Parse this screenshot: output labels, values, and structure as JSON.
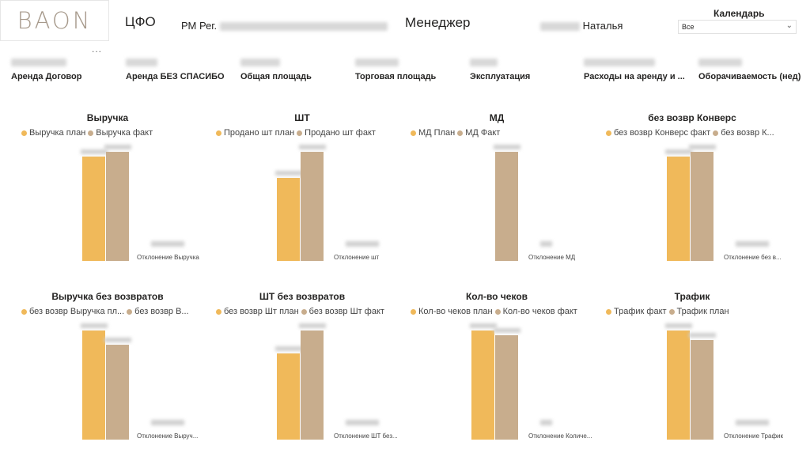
{
  "header": {
    "logo": "BAON",
    "cfo": "ЦФО",
    "rm_prefix": "РМ Рег.",
    "manager": "Менеджер",
    "user_name": "Наталья",
    "calendar_label": "Календарь",
    "calendar_value": "Все",
    "more": "..."
  },
  "cards": [
    {
      "label": "Аренда Договор"
    },
    {
      "label": "Аренда БЕЗ СПАСИБО"
    },
    {
      "label": "Общая площадь"
    },
    {
      "label": "Торговая площадь"
    },
    {
      "label": "Эксплуатация"
    },
    {
      "label": "Расходы на аренду и ..."
    },
    {
      "label": "Оборачиваемость (нед)"
    }
  ],
  "colors": {
    "plan": "#f0b95a",
    "fact": "#c8ad8d"
  },
  "chart_data": [
    {
      "type": "bar",
      "title": "Выручка",
      "series": [
        {
          "name": "Выручка план",
          "values": [
            88
          ],
          "color": "#f0b95a"
        },
        {
          "name": "Выручка факт",
          "values": [
            92
          ],
          "color": "#c8ad8d"
        }
      ],
      "deviation_label": "Отклонение Выручка"
    },
    {
      "type": "bar",
      "title": "ШТ",
      "series": [
        {
          "name": "Продано шт план",
          "values": [
            70
          ],
          "color": "#f0b95a"
        },
        {
          "name": "Продано шт факт",
          "values": [
            92
          ],
          "color": "#c8ad8d"
        }
      ],
      "deviation_label": "Отклонение шт"
    },
    {
      "type": "bar",
      "title": "МД",
      "series": [
        {
          "name": "МД План",
          "values": [
            0
          ],
          "color": "#f0b95a"
        },
        {
          "name": "МД Факт",
          "values": [
            92
          ],
          "color": "#c8ad8d"
        }
      ],
      "deviation_label": "Отклонение МД"
    },
    {
      "type": "bar",
      "title": "без возвр Конверс",
      "series": [
        {
          "name": "без возвр Конверс факт",
          "values": [
            88
          ],
          "color": "#f0b95a"
        },
        {
          "name": "без возвр Конверс план",
          "values": [
            92
          ],
          "color": "#c8ad8d"
        }
      ],
      "legend_texts": [
        "без возвр Конверс факт",
        "без возвр К..."
      ],
      "deviation_label": "Отклонение без в..."
    },
    {
      "type": "bar",
      "title": "Выручка без возвратов",
      "series": [
        {
          "name": "без возвр Выручка план",
          "values": [
            92
          ],
          "color": "#f0b95a"
        },
        {
          "name": "без возвр Выручка факт",
          "values": [
            80
          ],
          "color": "#c8ad8d"
        }
      ],
      "legend_texts": [
        "без возвр Выручка пл...",
        "без возвр В..."
      ],
      "deviation_label": "Отклонение Выруч..."
    },
    {
      "type": "bar",
      "title": "ШТ без возвратов",
      "series": [
        {
          "name": "без возвр Шт план",
          "values": [
            73
          ],
          "color": "#f0b95a"
        },
        {
          "name": "без возвр Шт факт",
          "values": [
            92
          ],
          "color": "#c8ad8d"
        }
      ],
      "deviation_label": "Отклонение ШТ без..."
    },
    {
      "type": "bar",
      "title": "Кол-во чеков",
      "series": [
        {
          "name": "Кол-во чеков план",
          "values": [
            92
          ],
          "color": "#f0b95a"
        },
        {
          "name": "Кол-во чеков факт",
          "values": [
            88
          ],
          "color": "#c8ad8d"
        }
      ],
      "deviation_label": "Отклонение Количе..."
    },
    {
      "type": "bar",
      "title": "Трафик",
      "series": [
        {
          "name": "Трафик факт",
          "values": [
            92
          ],
          "color": "#f0b95a"
        },
        {
          "name": "Трафик план",
          "values": [
            84
          ],
          "color": "#c8ad8d"
        }
      ],
      "deviation_label": "Отклонение Трафик"
    }
  ]
}
